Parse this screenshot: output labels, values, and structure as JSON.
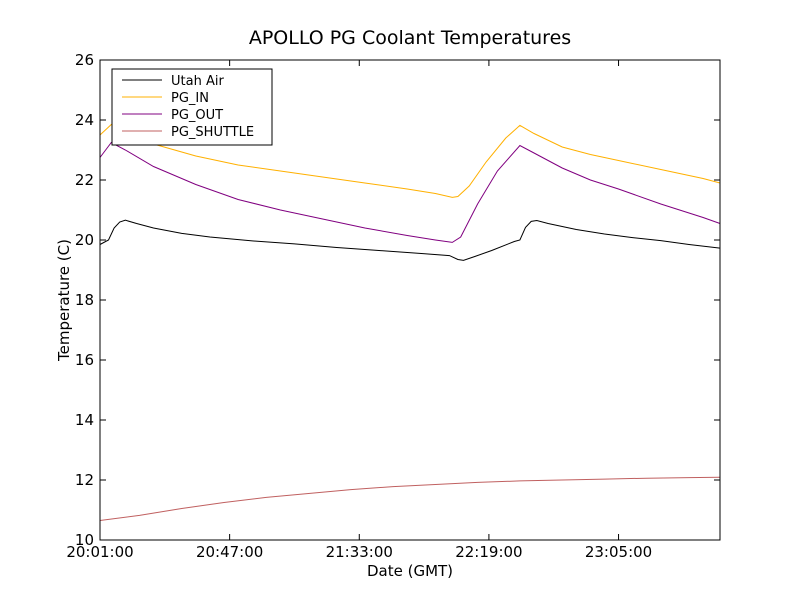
{
  "chart_data": {
    "type": "line",
    "title": "APOLLO PG Coolant Temperatures",
    "xlabel": "Date (GMT)",
    "ylabel": "Temperature (C)",
    "xlim": [
      "20:01:00",
      "23:41:00"
    ],
    "ylim": [
      10,
      26
    ],
    "xticks": [
      "20:01:00",
      "20:47:00",
      "21:33:00",
      "22:19:00",
      "23:05:00"
    ],
    "yticks": [
      10,
      12,
      14,
      16,
      18,
      20,
      22,
      24,
      26
    ],
    "grid": false,
    "legend": {
      "position": "top-left"
    },
    "series": [
      {
        "name": "Utah Air",
        "color": "#000000",
        "points": [
          [
            "20:01:00",
            19.85
          ],
          [
            "20:04:00",
            20.0
          ],
          [
            "20:06:00",
            20.4
          ],
          [
            "20:08:00",
            20.6
          ],
          [
            "20:10:00",
            20.66
          ],
          [
            "20:14:00",
            20.55
          ],
          [
            "20:20:00",
            20.4
          ],
          [
            "20:30:00",
            20.22
          ],
          [
            "20:40:00",
            20.1
          ],
          [
            "20:55:00",
            19.97
          ],
          [
            "21:10:00",
            19.87
          ],
          [
            "21:25:00",
            19.75
          ],
          [
            "21:40:00",
            19.65
          ],
          [
            "21:55:00",
            19.55
          ],
          [
            "22:05:00",
            19.48
          ],
          [
            "22:08:00",
            19.35
          ],
          [
            "22:10:00",
            19.32
          ],
          [
            "22:14:00",
            19.45
          ],
          [
            "22:20:00",
            19.65
          ],
          [
            "22:28:00",
            19.95
          ],
          [
            "22:30:00",
            20.0
          ],
          [
            "22:32:00",
            20.42
          ],
          [
            "22:34:00",
            20.62
          ],
          [
            "22:36:00",
            20.65
          ],
          [
            "22:40:00",
            20.55
          ],
          [
            "22:50:00",
            20.35
          ],
          [
            "23:00:00",
            20.2
          ],
          [
            "23:10:00",
            20.08
          ],
          [
            "23:20:00",
            19.98
          ],
          [
            "23:30:00",
            19.85
          ],
          [
            "23:41:00",
            19.73
          ]
        ]
      },
      {
        "name": "PG_IN",
        "color": "#ffb000",
        "points": [
          [
            "20:01:00",
            23.5
          ],
          [
            "20:05:00",
            23.85
          ],
          [
            "20:10:00",
            23.6
          ],
          [
            "20:20:00",
            23.2
          ],
          [
            "20:35:00",
            22.8
          ],
          [
            "20:50:00",
            22.5
          ],
          [
            "21:05:00",
            22.3
          ],
          [
            "21:20:00",
            22.1
          ],
          [
            "21:35:00",
            21.9
          ],
          [
            "21:50:00",
            21.7
          ],
          [
            "22:00:00",
            21.55
          ],
          [
            "22:06:00",
            21.42
          ],
          [
            "22:08:00",
            21.45
          ],
          [
            "22:12:00",
            21.8
          ],
          [
            "22:18:00",
            22.6
          ],
          [
            "22:25:00",
            23.4
          ],
          [
            "22:30:00",
            23.82
          ],
          [
            "22:35:00",
            23.55
          ],
          [
            "22:45:00",
            23.1
          ],
          [
            "22:55:00",
            22.85
          ],
          [
            "23:05:00",
            22.65
          ],
          [
            "23:20:00",
            22.35
          ],
          [
            "23:35:00",
            22.05
          ],
          [
            "23:41:00",
            21.9
          ]
        ]
      },
      {
        "name": "PG_OUT",
        "color": "#800080",
        "points": [
          [
            "20:01:00",
            22.75
          ],
          [
            "20:05:00",
            23.25
          ],
          [
            "20:10:00",
            23.0
          ],
          [
            "20:20:00",
            22.45
          ],
          [
            "20:35:00",
            21.85
          ],
          [
            "20:50:00",
            21.35
          ],
          [
            "21:05:00",
            21.0
          ],
          [
            "21:20:00",
            20.7
          ],
          [
            "21:35:00",
            20.4
          ],
          [
            "21:50:00",
            20.15
          ],
          [
            "22:00:00",
            20.0
          ],
          [
            "22:06:00",
            19.92
          ],
          [
            "22:09:00",
            20.1
          ],
          [
            "22:15:00",
            21.2
          ],
          [
            "22:22:00",
            22.3
          ],
          [
            "22:30:00",
            23.15
          ],
          [
            "22:34:00",
            22.95
          ],
          [
            "22:45:00",
            22.4
          ],
          [
            "22:55:00",
            22.0
          ],
          [
            "23:05:00",
            21.7
          ],
          [
            "23:20:00",
            21.2
          ],
          [
            "23:35:00",
            20.75
          ],
          [
            "23:41:00",
            20.55
          ]
        ]
      },
      {
        "name": "PG_SHUTTLE",
        "color": "#c06060",
        "points": [
          [
            "20:01:00",
            10.65
          ],
          [
            "20:15:00",
            10.82
          ],
          [
            "20:30:00",
            11.05
          ],
          [
            "20:45:00",
            11.25
          ],
          [
            "21:00:00",
            11.42
          ],
          [
            "21:15:00",
            11.55
          ],
          [
            "21:30:00",
            11.68
          ],
          [
            "21:45:00",
            11.78
          ],
          [
            "22:00:00",
            11.85
          ],
          [
            "22:15:00",
            11.92
          ],
          [
            "22:30:00",
            11.97
          ],
          [
            "22:45:00",
            12.0
          ],
          [
            "23:00:00",
            12.03
          ],
          [
            "23:15:00",
            12.06
          ],
          [
            "23:30:00",
            12.08
          ],
          [
            "23:41:00",
            12.09
          ]
        ]
      }
    ]
  }
}
